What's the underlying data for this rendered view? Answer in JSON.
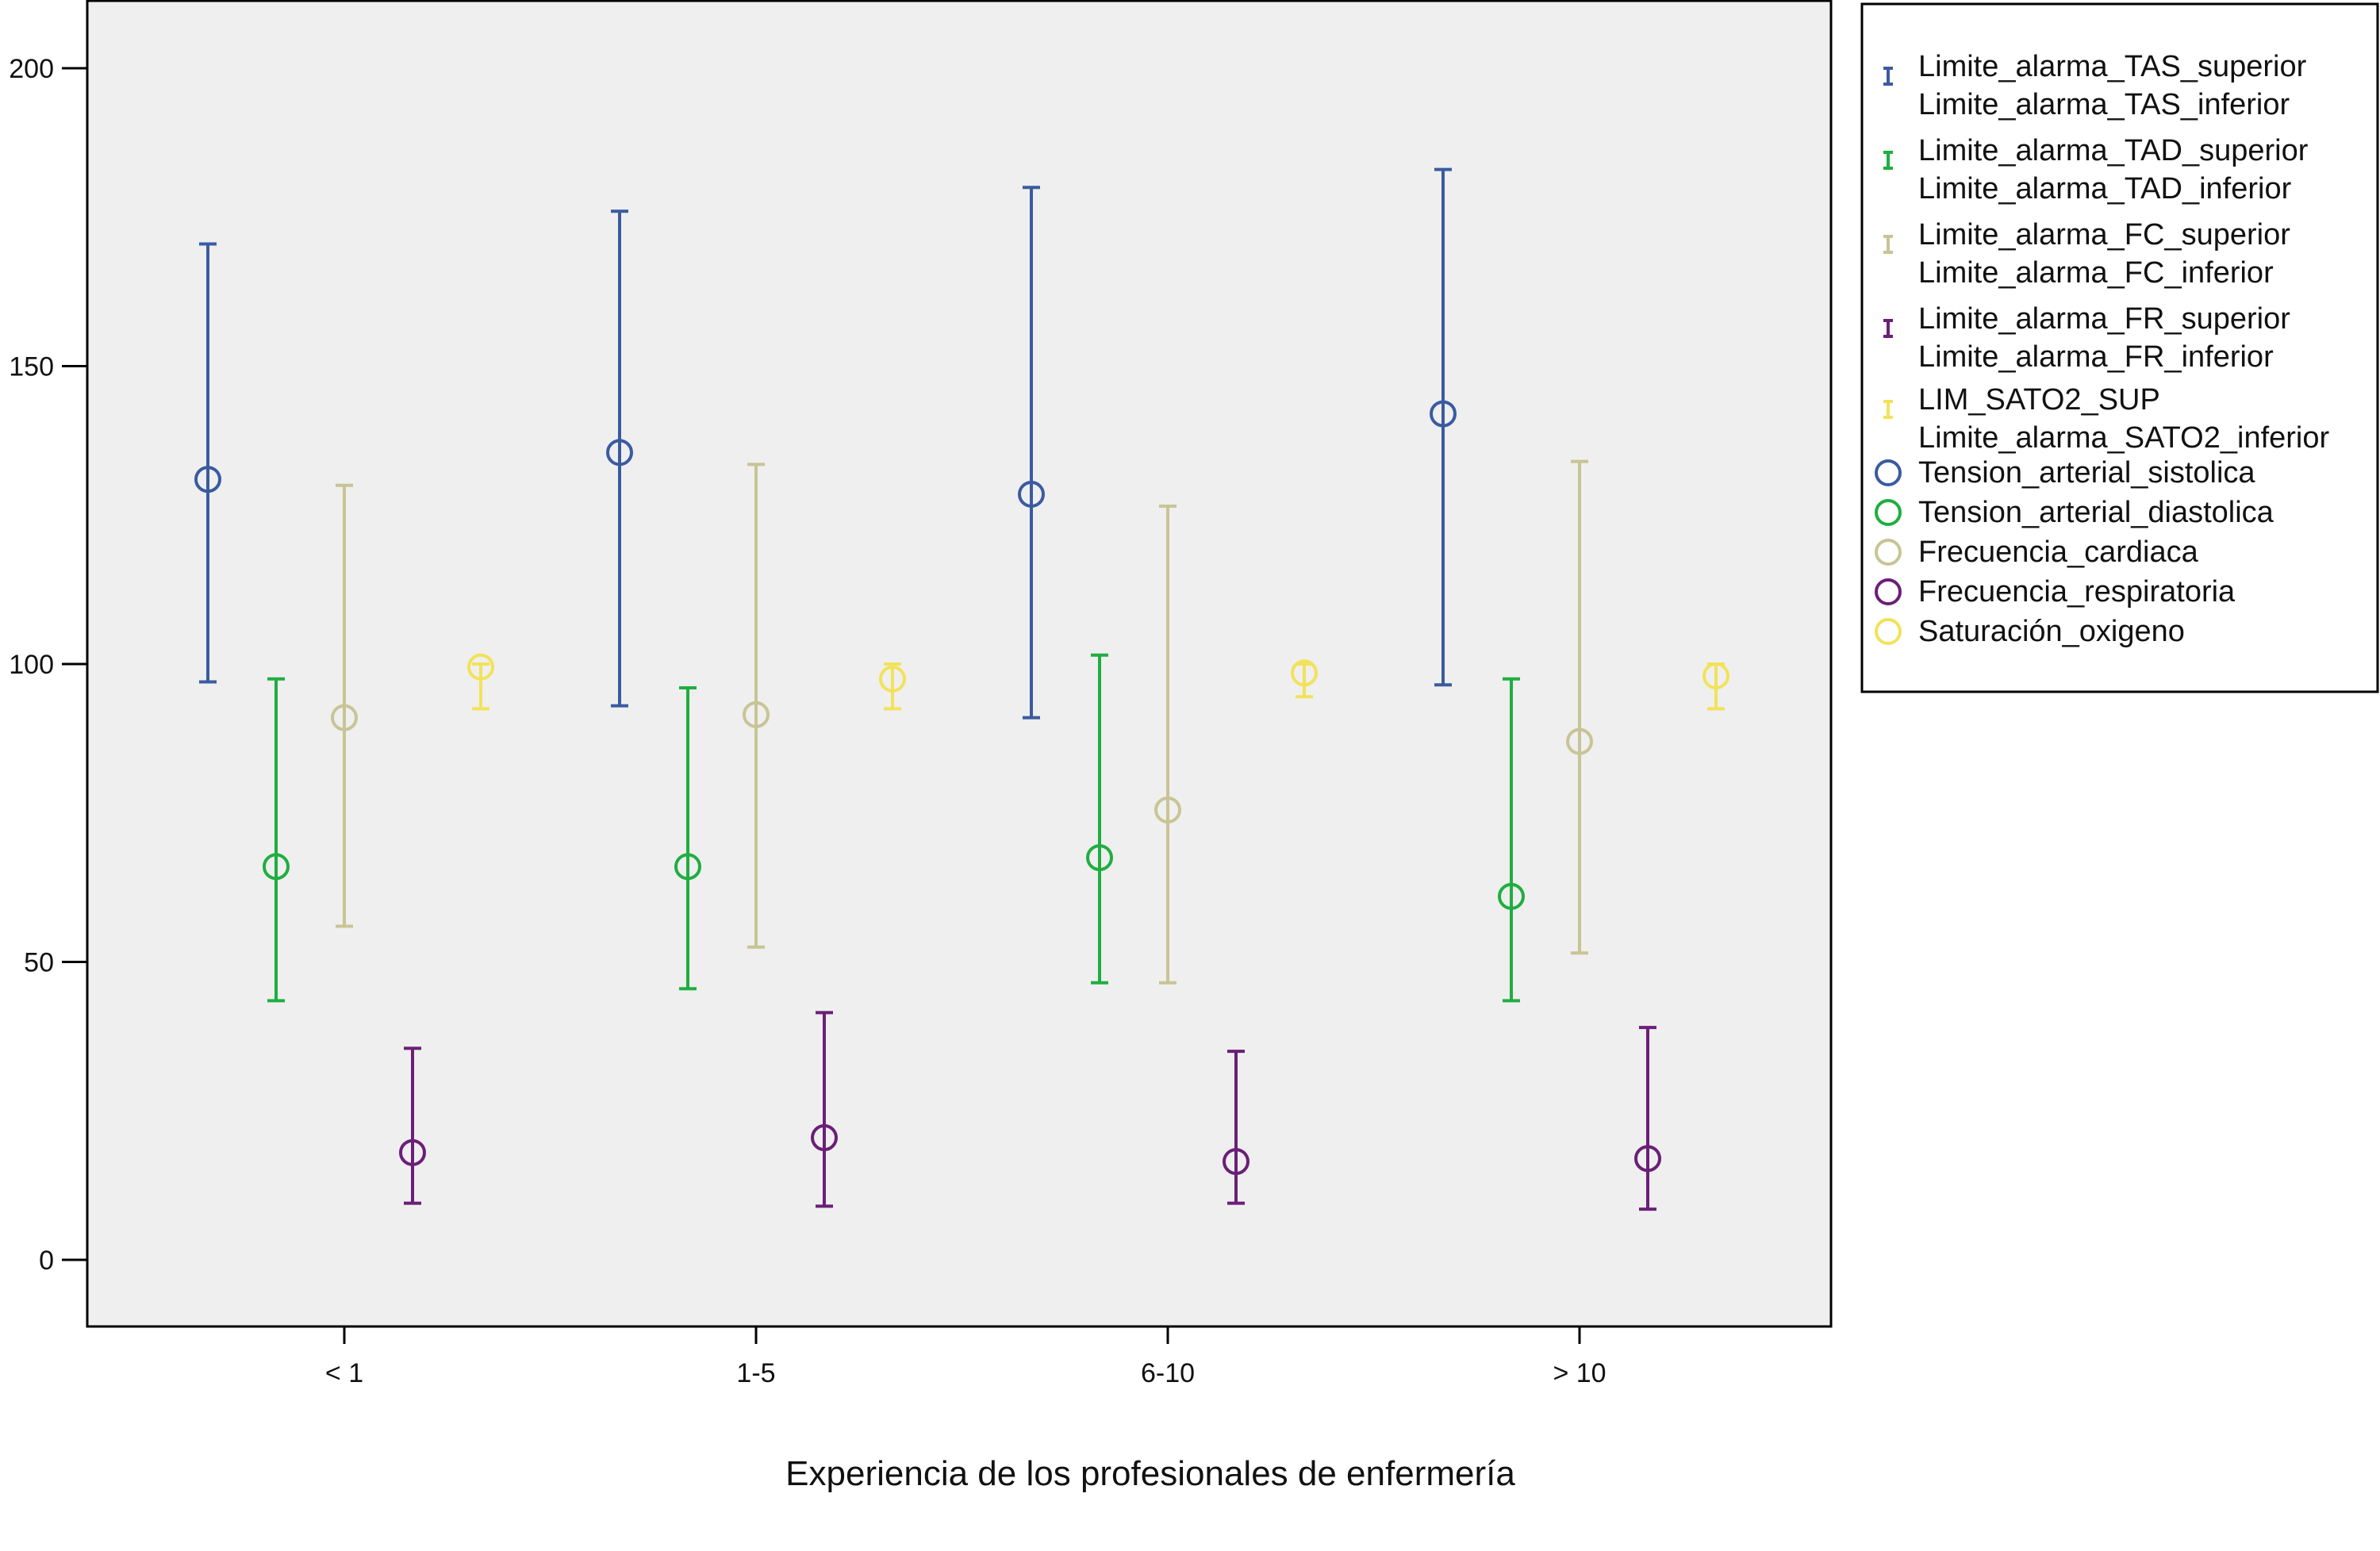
{
  "chart_data": {
    "type": "error_bar",
    "xlabel": "Experiencia  de los profesionales de enfermería",
    "ylabel": "",
    "ylim": [
      -11,
      211
    ],
    "yticks": [
      0,
      50,
      100,
      150,
      200
    ],
    "categories": [
      "< 1",
      "1-5",
      "6-10",
      "> 10"
    ],
    "grid": false,
    "legend_position": "right",
    "series": [
      {
        "key": "tas",
        "color": "#3a5ba0",
        "range_label": [
          "Limite_alarma_TAS_superior",
          "Limite_alarma_TAS_inferior"
        ],
        "mean_label": "Tension_arterial_sistolica",
        "mean": [
          131,
          135.5,
          128.5,
          142
        ],
        "upper": [
          170.5,
          176,
          180,
          183
        ],
        "lower": [
          97,
          93,
          91,
          96.5
        ]
      },
      {
        "key": "tad",
        "color": "#1fae40",
        "range_label": [
          "Limite_alarma_TAD_superior",
          "Limite_alarma_TAD_inferior"
        ],
        "mean_label": "Tension_arterial_diastolica",
        "mean": [
          66,
          66,
          67.5,
          61
        ],
        "upper": [
          97.5,
          96,
          101.5,
          97.5
        ],
        "lower": [
          43.5,
          45.5,
          46.5,
          43.5
        ]
      },
      {
        "key": "fc",
        "color": "#c8c495",
        "range_label": [
          "Limite_alarma_FC_superior",
          "Limite_alarma_FC_inferior"
        ],
        "mean_label": "Frecuencia_cardiaca",
        "mean": [
          91,
          91.5,
          75.5,
          87
        ],
        "upper": [
          130,
          133.5,
          126.5,
          134
        ],
        "lower": [
          56,
          52.5,
          46.5,
          51.5
        ]
      },
      {
        "key": "fr",
        "color": "#6b1f78",
        "range_label": [
          "Limite_alarma_FR_superior",
          "Limite_alarma_FR_inferior"
        ],
        "mean_label": "Frecuencia_respiratoria",
        "mean": [
          18,
          20.5,
          16.5,
          17
        ],
        "upper": [
          35.5,
          41.5,
          35,
          39
        ],
        "lower": [
          9.5,
          9,
          9.5,
          8.5
        ]
      },
      {
        "key": "sat",
        "color": "#f2e25a",
        "range_label": [
          "LIM_SATO2_SUP",
          "Limite_alarma_SATO2_inferior"
        ],
        "mean_label": "Saturación_oxigeno",
        "mean": [
          99.5,
          97.5,
          98.5,
          98
        ],
        "upper": [
          100,
          100,
          100,
          100
        ],
        "lower": [
          92.5,
          92.5,
          94.5,
          92.5
        ]
      }
    ]
  }
}
